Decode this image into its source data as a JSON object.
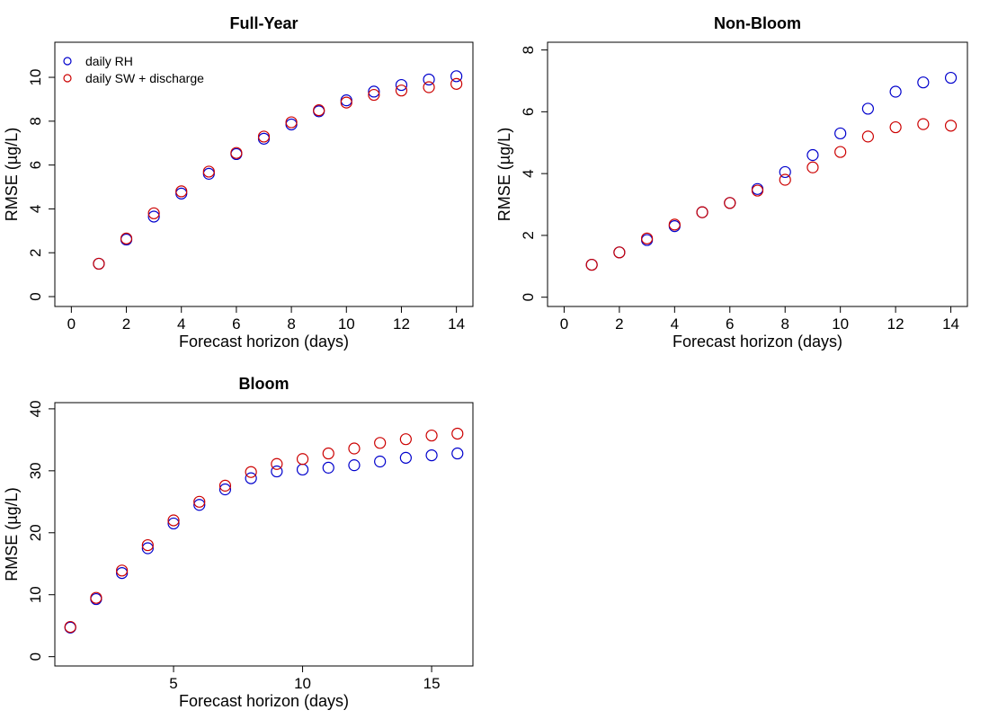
{
  "chart_data": [
    {
      "type": "scatter",
      "title": "Full-Year",
      "xlabel": "Forecast horizon (days)",
      "ylabel": "RMSE (µg/L)",
      "xlim": [
        -0.6,
        14.6
      ],
      "ylim": [
        -0.45,
        11.6
      ],
      "xticks": [
        0,
        2,
        4,
        6,
        8,
        10,
        12,
        14
      ],
      "yticks": [
        0,
        2,
        4,
        6,
        8,
        10
      ],
      "legend": {
        "position": "top-left",
        "entries": [
          {
            "label": "daily RH",
            "color": "#0000cc"
          },
          {
            "label": "daily SW + discharge",
            "color": "#cc0000"
          }
        ]
      },
      "x": [
        1,
        2,
        3,
        4,
        5,
        6,
        7,
        8,
        9,
        10,
        11,
        12,
        13,
        14
      ],
      "series": [
        {
          "color": "#0000cc",
          "values": [
            1.5,
            2.6,
            3.65,
            4.7,
            5.6,
            6.5,
            7.2,
            7.85,
            8.45,
            8.95,
            9.35,
            9.65,
            9.9,
            10.05
          ]
        },
        {
          "color": "#cc0000",
          "values": [
            1.5,
            2.65,
            3.8,
            4.8,
            5.7,
            6.55,
            7.3,
            7.95,
            8.5,
            8.85,
            9.2,
            9.4,
            9.55,
            9.7
          ]
        }
      ]
    },
    {
      "type": "scatter",
      "title": "Non-Bloom",
      "xlabel": "Forecast horizon (days)",
      "ylabel": "RMSE (µg/L)",
      "xlim": [
        -0.6,
        14.6
      ],
      "ylim": [
        -0.3,
        8.25
      ],
      "xticks": [
        0,
        2,
        4,
        6,
        8,
        10,
        12,
        14
      ],
      "yticks": [
        0,
        2,
        4,
        6,
        8
      ],
      "x": [
        1,
        2,
        3,
        4,
        5,
        6,
        7,
        8,
        9,
        10,
        11,
        12,
        13,
        14
      ],
      "series": [
        {
          "color": "#0000cc",
          "values": [
            1.05,
            1.45,
            1.85,
            2.3,
            2.75,
            3.05,
            3.5,
            4.05,
            4.6,
            5.3,
            6.1,
            6.65,
            6.95,
            7.1
          ]
        },
        {
          "color": "#cc0000",
          "values": [
            1.05,
            1.45,
            1.9,
            2.35,
            2.75,
            3.05,
            3.45,
            3.8,
            4.2,
            4.7,
            5.2,
            5.5,
            5.6,
            5.55
          ]
        }
      ]
    },
    {
      "type": "scatter",
      "title": "Bloom",
      "xlabel": "Forecast horizon (days)",
      "ylabel": "RMSE (µg/L)",
      "xlim": [
        0.4,
        16.6
      ],
      "ylim": [
        -1.5,
        41
      ],
      "xticks": [
        5,
        10,
        15
      ],
      "yticks": [
        0,
        10,
        20,
        30,
        40
      ],
      "x": [
        1,
        2,
        3,
        4,
        5,
        6,
        7,
        8,
        9,
        10,
        11,
        12,
        13,
        14,
        15,
        16
      ],
      "series": [
        {
          "color": "#0000cc",
          "values": [
            4.7,
            9.3,
            13.5,
            17.5,
            21.5,
            24.5,
            27.0,
            28.8,
            29.9,
            30.2,
            30.5,
            30.9,
            31.5,
            32.1,
            32.5,
            32.8
          ]
        },
        {
          "color": "#cc0000",
          "values": [
            4.8,
            9.5,
            13.9,
            18.0,
            22.0,
            25.0,
            27.6,
            29.8,
            31.1,
            31.9,
            32.8,
            33.6,
            34.5,
            35.1,
            35.7,
            36.0
          ]
        }
      ]
    }
  ]
}
